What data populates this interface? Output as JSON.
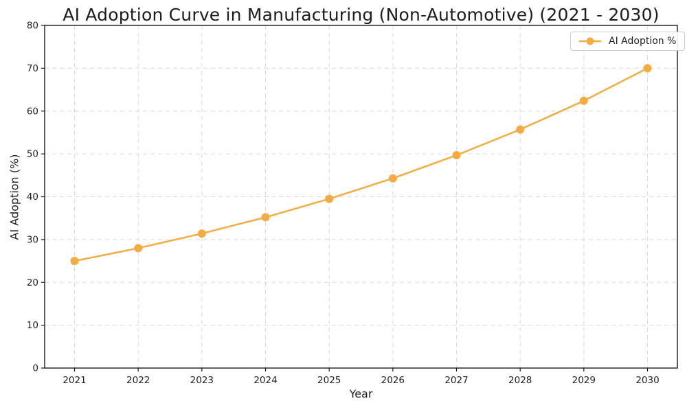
{
  "title": "AI Adoption Curve in Manufacturing (Non-Automotive) (2021 - 2030)",
  "chart_data": {
    "type": "line",
    "title": "AI Adoption Curve in Manufacturing (Non-Automotive) (2021 - 2030)",
    "xlabel": "Year",
    "ylabel": "AI Adoption (%)",
    "categories": [
      "2021",
      "2022",
      "2023",
      "2024",
      "2025",
      "2026",
      "2027",
      "2028",
      "2029",
      "2030"
    ],
    "yticks": [
      0,
      10,
      20,
      30,
      40,
      50,
      60,
      70,
      80
    ],
    "ylim": [
      0,
      80
    ],
    "grid": true,
    "grid_style": "dashed",
    "legend_position": "upper right",
    "series": [
      {
        "name": "AI Adoption %",
        "values": [
          25.0,
          28.0,
          31.4,
          35.2,
          39.5,
          44.3,
          49.7,
          55.7,
          62.4,
          70.0
        ],
        "color": "#F4AB42",
        "marker": "circle",
        "line_style": "solid"
      }
    ]
  }
}
